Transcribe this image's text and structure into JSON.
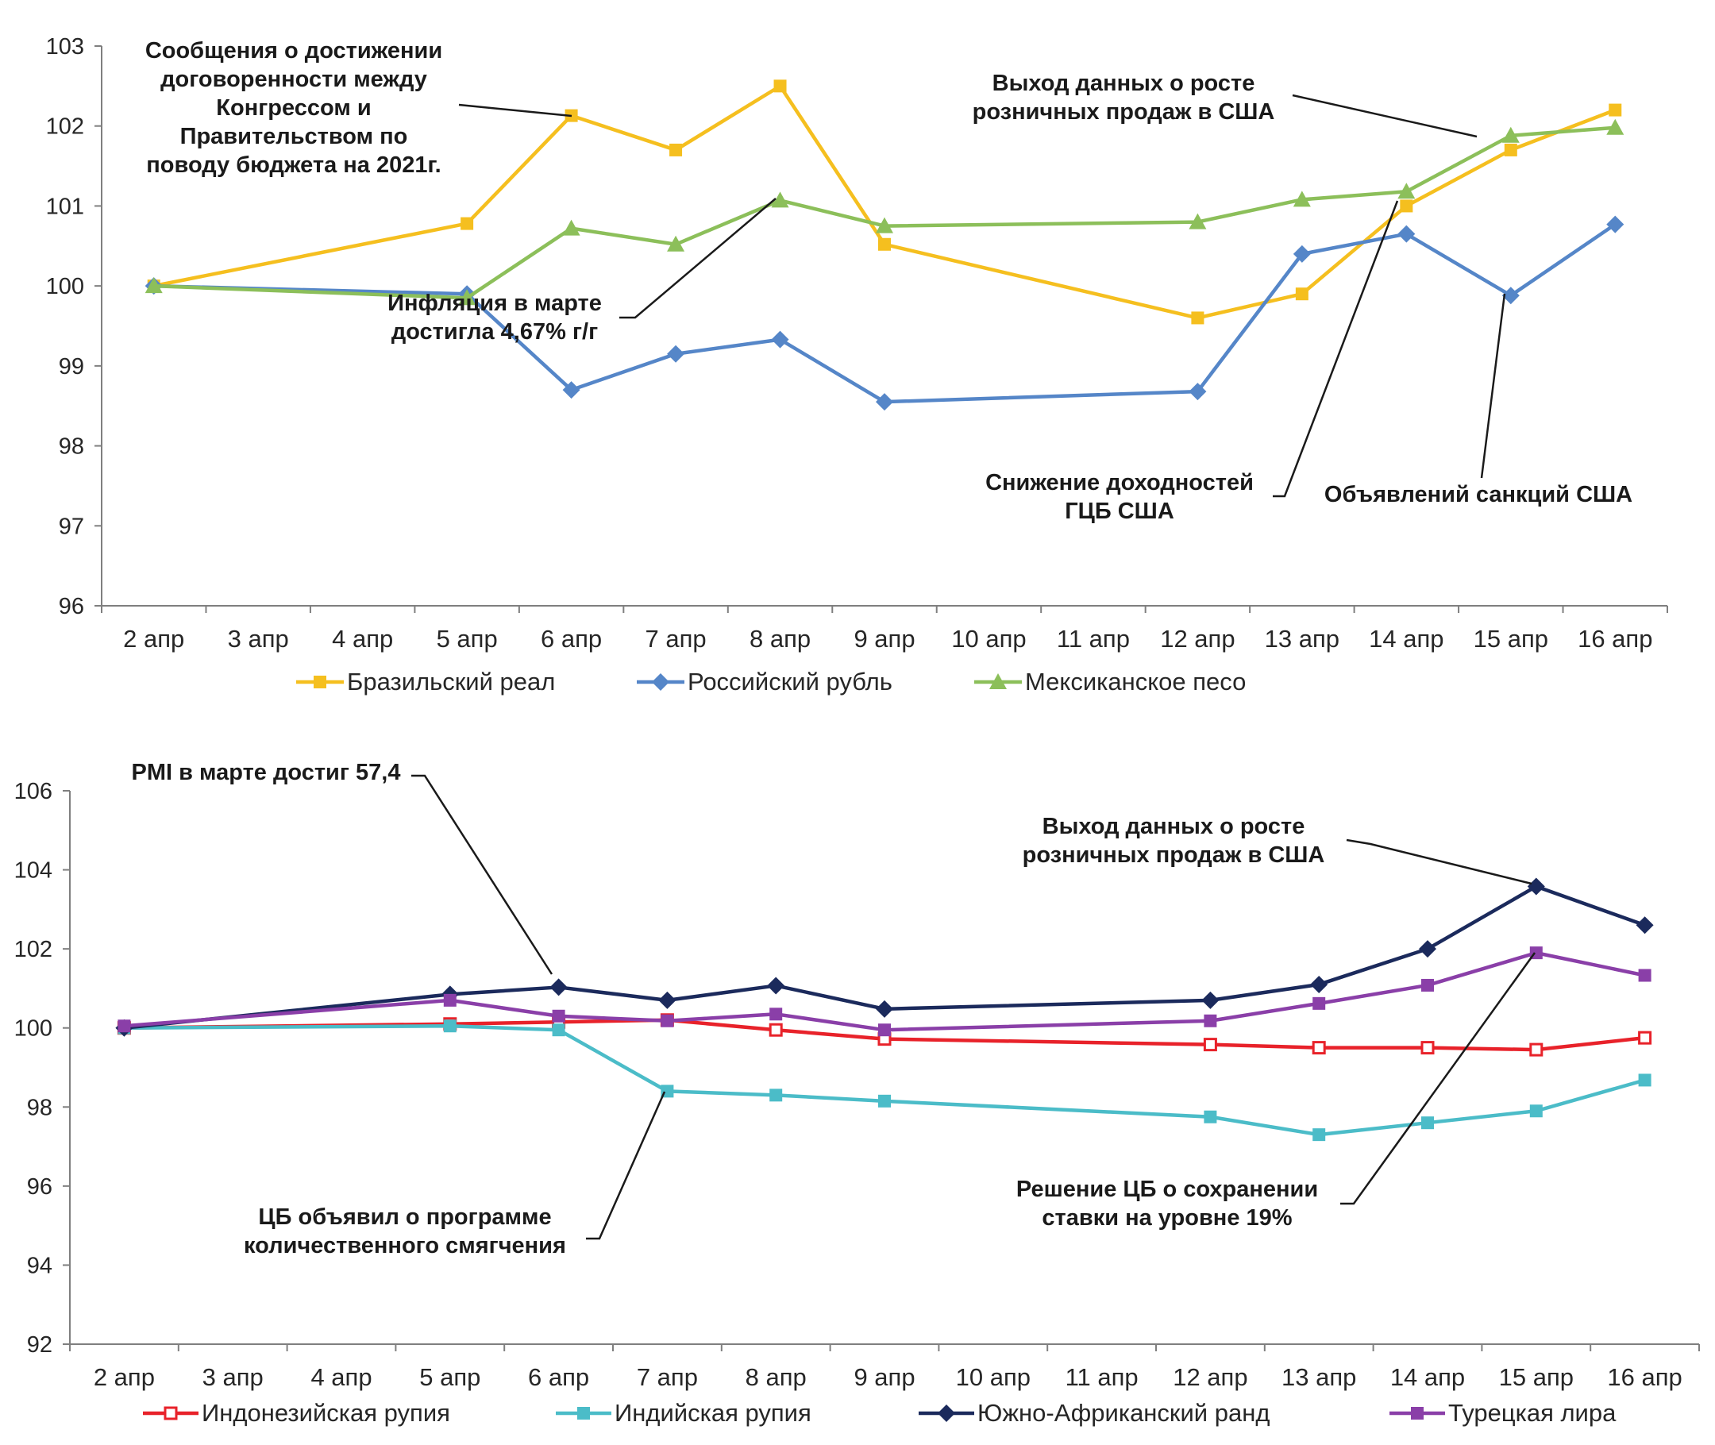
{
  "chart_data": [
    {
      "type": "line",
      "title": "",
      "xlabel": "",
      "ylabel": "",
      "categories": [
        "2 апр",
        "3 апр",
        "4 апр",
        "5 апр",
        "6 апр",
        "7 апр",
        "8 апр",
        "9 апр",
        "10 апр",
        "11 апр",
        "12 апр",
        "13 апр",
        "14 апр",
        "15 апр",
        "16 апр"
      ],
      "ylim": [
        96,
        103
      ],
      "yticks": [
        "96",
        "97",
        "98",
        "99",
        "100",
        "101",
        "102",
        "103"
      ],
      "grid": false,
      "legend_position": "bottom",
      "series": [
        {
          "name": "Бразильский реал",
          "color": "#f5bf1f",
          "marker": "square",
          "values": [
            100.0,
            null,
            null,
            100.78,
            102.13,
            101.7,
            102.5,
            100.52,
            null,
            null,
            99.6,
            99.9,
            101.0,
            101.7,
            102.2
          ]
        },
        {
          "name": "Российский рубль",
          "color": "#5586c8",
          "marker": "diamond",
          "values": [
            100.0,
            null,
            null,
            99.9,
            98.7,
            99.15,
            99.33,
            98.55,
            null,
            null,
            98.68,
            100.4,
            100.65,
            99.88,
            100.77
          ]
        },
        {
          "name": "Мексиканское песо",
          "color": "#8cbf5a",
          "marker": "triangle",
          "values": [
            100.0,
            null,
            null,
            99.85,
            100.72,
            100.52,
            101.07,
            100.75,
            null,
            null,
            100.8,
            101.08,
            101.18,
            101.88,
            101.98
          ]
        }
      ],
      "annotations": [
        {
          "lines": [
            "Сообщения о достижении",
            "договоренности между",
            "Конгрессом и",
            "Правительством по",
            "поводу бюджета на 2021г."
          ],
          "target": {
            "x": "6 апр",
            "y": 102.13
          }
        },
        {
          "lines": [
            "Выход данных о росте",
            "розничных продаж в США"
          ],
          "target": {
            "x": "15 апр",
            "y": 101.88
          }
        },
        {
          "lines": [
            "Инфляция в марте",
            "достигла 4,67% г/г"
          ],
          "target": {
            "x": "8 апр",
            "y": 101.07
          }
        },
        {
          "lines": [
            "Снижение доходностей",
            "ГЦБ США"
          ],
          "target": {
            "x": "14 апр",
            "y": 101.0
          }
        },
        {
          "lines": [
            "Объявлений санкций США"
          ],
          "target": {
            "x": "15 апр",
            "y": 99.88
          }
        }
      ]
    },
    {
      "type": "line",
      "title": "",
      "xlabel": "",
      "ylabel": "",
      "categories": [
        "2 апр",
        "3 апр",
        "4 апр",
        "5 апр",
        "6 апр",
        "7 апр",
        "8 апр",
        "9 апр",
        "10 апр",
        "11 апр",
        "12 апр",
        "13 апр",
        "14 апр",
        "15 апр",
        "16 апр"
      ],
      "ylim": [
        92,
        106
      ],
      "yticks": [
        "92",
        "94",
        "96",
        "98",
        "100",
        "102",
        "104",
        "106"
      ],
      "grid": false,
      "legend_position": "bottom",
      "series": [
        {
          "name": "Индонезийская рупия",
          "color": "#e8222a",
          "marker": "square-open",
          "values": [
            100.0,
            null,
            null,
            100.1,
            100.15,
            100.2,
            99.95,
            99.72,
            null,
            null,
            99.58,
            99.5,
            99.5,
            99.45,
            99.75
          ]
        },
        {
          "name": "Индийская рупия",
          "color": "#4bbcc8",
          "marker": "square",
          "values": [
            100.0,
            null,
            null,
            100.05,
            99.95,
            98.4,
            98.3,
            98.15,
            null,
            null,
            97.75,
            97.3,
            97.6,
            97.9,
            98.68
          ]
        },
        {
          "name": "Южно-Африканский ранд",
          "color": "#1b2a5c",
          "marker": "diamond",
          "values": [
            100.0,
            null,
            null,
            100.85,
            101.03,
            100.7,
            101.07,
            100.48,
            null,
            null,
            100.7,
            101.1,
            102.0,
            103.58,
            102.6
          ]
        },
        {
          "name": "Турецкая лира",
          "color": "#8a3fa8",
          "marker": "square",
          "values": [
            100.05,
            null,
            null,
            100.7,
            100.3,
            100.18,
            100.35,
            99.95,
            null,
            null,
            100.18,
            100.62,
            101.08,
            101.9,
            101.33
          ]
        }
      ],
      "annotations": [
        {
          "lines": [
            "PMI в марте достиг 57,4"
          ],
          "target": {
            "x": "6 апр",
            "y": 101.03
          }
        },
        {
          "lines": [
            "Выход данных о росте",
            "розничных продаж в США"
          ],
          "target": {
            "x": "15 апр",
            "y": 103.58
          }
        },
        {
          "lines": [
            "ЦБ объявил о программе",
            "количественного смягчения"
          ],
          "target": {
            "x": "7 апр",
            "y": 98.4
          }
        },
        {
          "lines": [
            "Решение ЦБ о сохранении",
            "ставки на уровне 19%"
          ],
          "target": {
            "x": "15 апр",
            "y": 101.9
          }
        }
      ]
    }
  ]
}
